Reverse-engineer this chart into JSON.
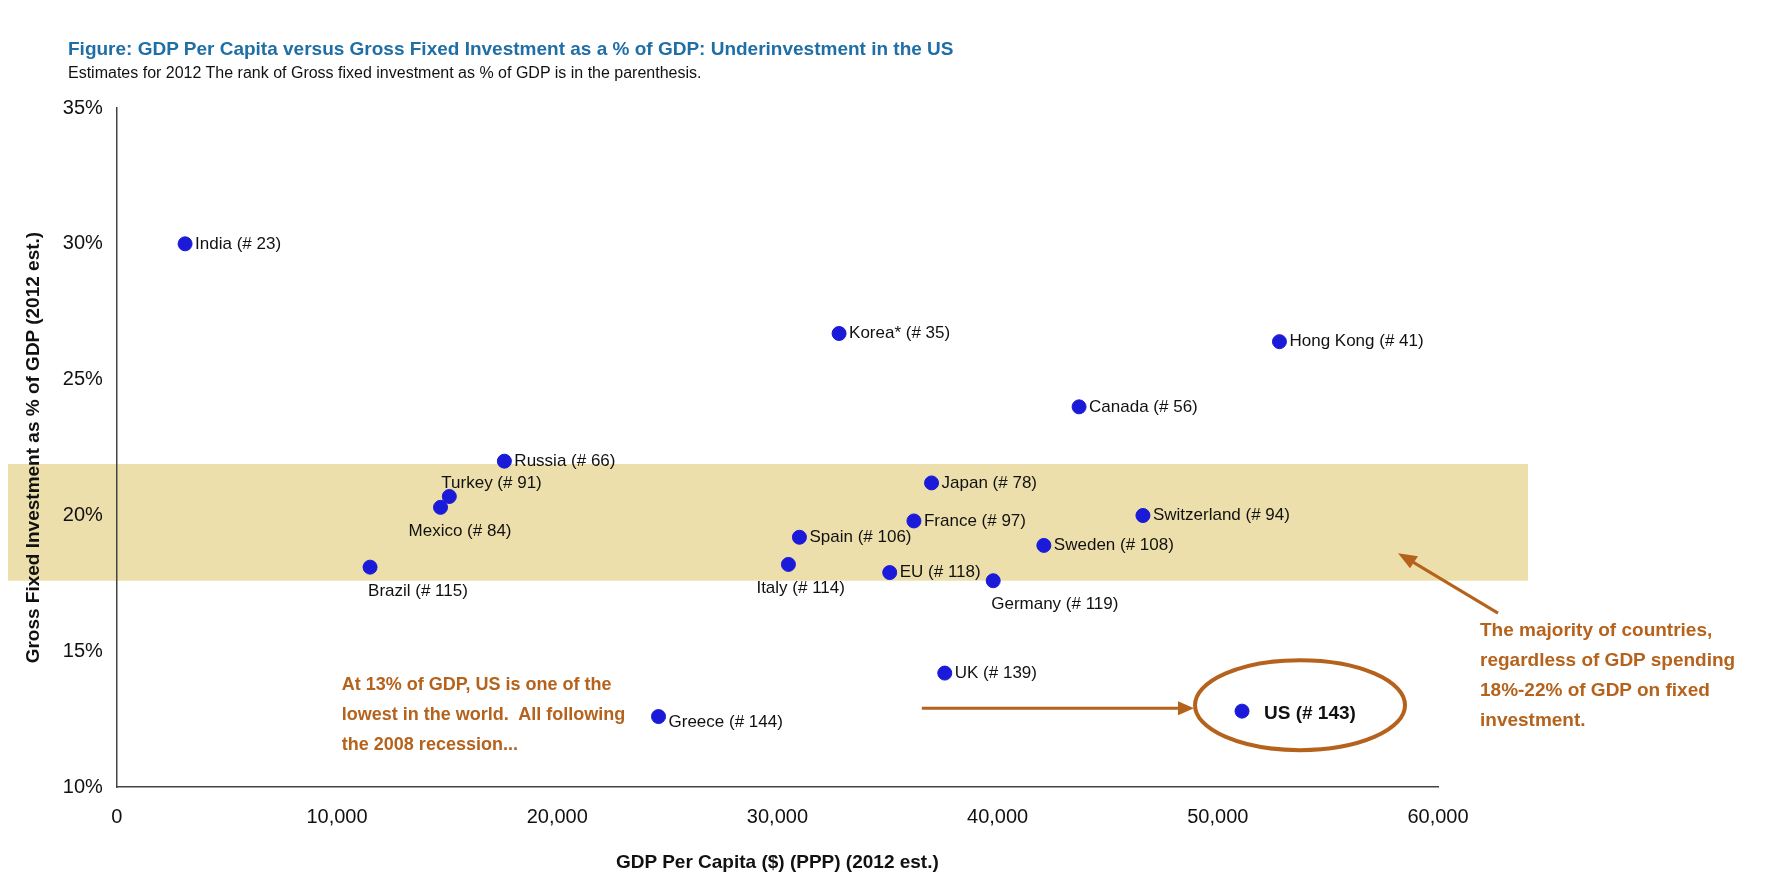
{
  "chart_data": {
    "type": "scatter",
    "title": "Figure:  GDP Per Capita versus Gross Fixed Investment as a % of GDP: Underinvestment in the US",
    "subtitle": "Estimates for 2012  The rank of Gross fixed investment as % of GDP is in the parenthesis.",
    "xlabel": "GDP Per Capita ($) (PPP) (2012 est.)",
    "ylabel": "Gross Fixed Investment as % of GDP (2012 est.)",
    "xlim": [
      0,
      60000
    ],
    "ylim": [
      10,
      35
    ],
    "xticks": [
      0,
      {
        "value": 10000,
        "label": "10,000"
      },
      {
        "value": 20000,
        "label": "20,000"
      },
      {
        "value": 30000,
        "label": "30,000"
      },
      {
        "value": 40000,
        "label": "40,000"
      },
      {
        "value": 50000,
        "label": "50,000"
      },
      {
        "value": 60000,
        "label": "60,000"
      }
    ],
    "yticks": [
      {
        "value": 10,
        "label": "10%"
      },
      {
        "value": 15,
        "label": "15%"
      },
      {
        "value": 20,
        "label": "20%"
      },
      {
        "value": 25,
        "label": "25%"
      },
      {
        "value": 30,
        "label": "30%"
      },
      {
        "value": 35,
        "label": "35%"
      }
    ],
    "grid": false,
    "legend": false,
    "marker": "circle",
    "bands": [
      {
        "axis": "y",
        "from": 17.6,
        "to": 21.9,
        "color": "#eddfab"
      }
    ],
    "annotations": [
      "At 13% of GDP, US is one of the lowest in the world.  All following the 2008 recession...",
      "The majority of countries, regardless of GDP spending 18%-22% of GDP on fixed investment."
    ],
    "series": [
      {
        "name": "India (# 23)",
        "color": "#1a1ad8",
        "x": [
          3100
        ],
        "values": [
          30.0
        ]
      },
      {
        "name": "Korea* (# 35)",
        "color": "#1a1ad8",
        "x": [
          32800
        ],
        "values": [
          26.7
        ]
      },
      {
        "name": "Hong Kong (# 41)",
        "color": "#1a1ad8",
        "x": [
          52800
        ],
        "values": [
          26.4
        ]
      },
      {
        "name": "Canada (# 56)",
        "color": "#1a1ad8",
        "x": [
          43700
        ],
        "values": [
          24.0
        ]
      },
      {
        "name": "Russia (# 66)",
        "color": "#1a1ad8",
        "x": [
          17600
        ],
        "values": [
          22.0
        ]
      },
      {
        "name": "Turkey (# 91)",
        "color": "#1a1ad8",
        "x": [
          15100
        ],
        "values": [
          20.7
        ]
      },
      {
        "name": "Mexico (# 84)",
        "color": "#1a1ad8",
        "x": [
          14700
        ],
        "values": [
          20.3
        ]
      },
      {
        "name": "Japan (# 78)",
        "color": "#1a1ad8",
        "x": [
          37000
        ],
        "values": [
          21.2
        ]
      },
      {
        "name": "France (# 97)",
        "color": "#1a1ad8",
        "x": [
          36200
        ],
        "values": [
          19.8
        ]
      },
      {
        "name": "Spain (# 106)",
        "color": "#1a1ad8",
        "x": [
          31000
        ],
        "values": [
          19.2
        ]
      },
      {
        "name": "Switzerland (# 94)",
        "color": "#1a1ad8",
        "x": [
          46600
        ],
        "values": [
          20.0
        ]
      },
      {
        "name": "Sweden (# 108)",
        "color": "#1a1ad8",
        "x": [
          42100
        ],
        "values": [
          18.9
        ]
      },
      {
        "name": "Italy (# 114)",
        "color": "#1a1ad8",
        "x": [
          30500
        ],
        "values": [
          18.2
        ]
      },
      {
        "name": "EU (# 118)",
        "color": "#1a1ad8",
        "x": [
          35100
        ],
        "values": [
          17.9
        ]
      },
      {
        "name": "Germany (# 119)",
        "color": "#1a1ad8",
        "x": [
          39800
        ],
        "values": [
          17.6
        ]
      },
      {
        "name": "Brazil (# 115)",
        "color": "#1a1ad8",
        "x": [
          11500
        ],
        "values": [
          18.1
        ]
      },
      {
        "name": "UK (# 139)",
        "color": "#1a1ad8",
        "x": [
          37600
        ],
        "values": [
          14.2
        ]
      },
      {
        "name": "Greece (# 144)",
        "color": "#1a1ad8",
        "x": [
          24600
        ],
        "values": [
          12.6
        ]
      },
      {
        "name": "US (# 143)",
        "color": "#1a1ad8",
        "x": [
          51100
        ],
        "values": [
          12.8
        ]
      }
    ]
  }
}
